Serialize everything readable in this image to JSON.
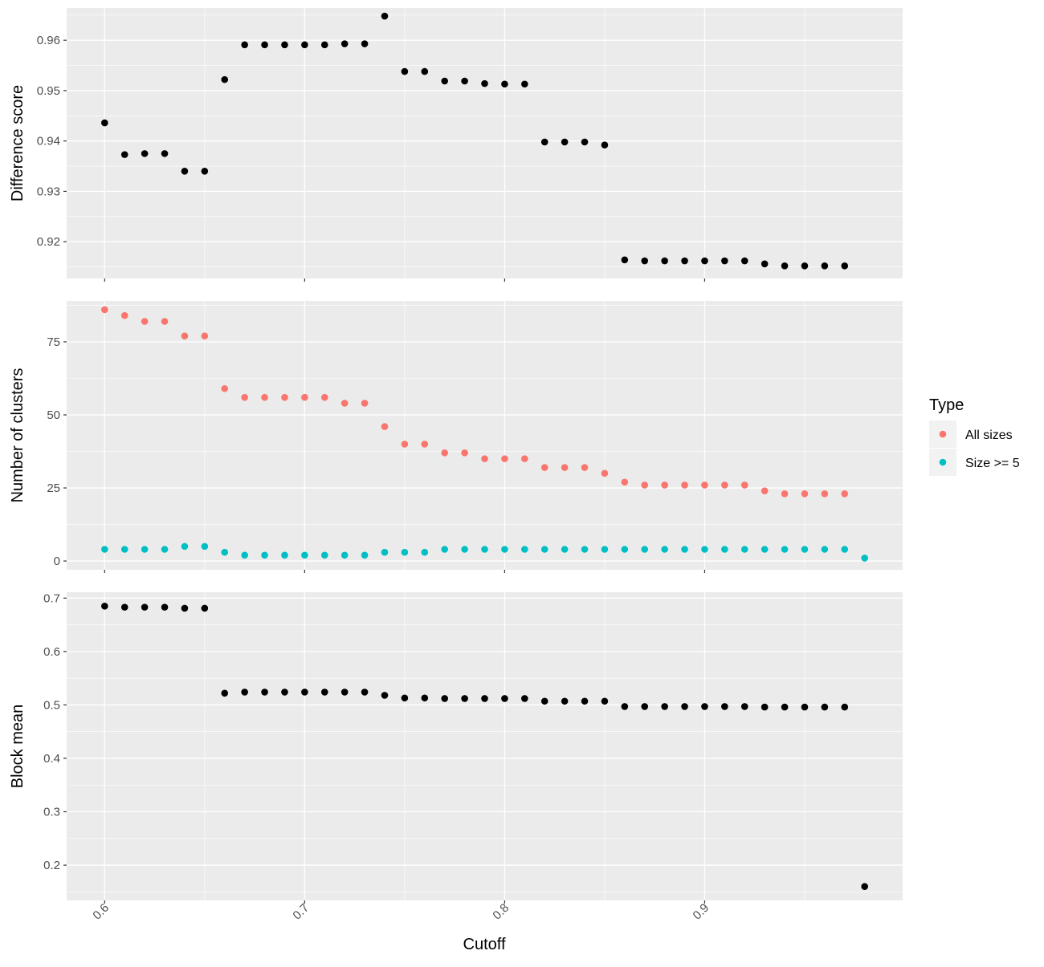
{
  "chart_data": {
    "type": "scatter",
    "xlabel": "Cutoff",
    "xlim": [
      0.581,
      0.999
    ],
    "xticks": [
      "0.6",
      "0.7",
      "0.8",
      "0.9"
    ],
    "xtick_values": [
      0.6,
      0.7,
      0.8,
      0.9
    ],
    "grid": true,
    "legend": {
      "title": "Type",
      "placement": "right",
      "entries": [
        {
          "label": "All sizes",
          "color": "#F8766D"
        },
        {
          "label": "Size >= 5",
          "color": "#00BFC4"
        }
      ]
    },
    "panels": [
      {
        "ylabel": "Difference score",
        "ylim": [
          0.9127,
          0.9664
        ],
        "yticks": [
          "0.92",
          "0.93",
          "0.94",
          "0.95",
          "0.96"
        ],
        "ytick_values": [
          0.92,
          0.93,
          0.94,
          0.95,
          0.96
        ],
        "series": [
          {
            "color": "#000000",
            "points": [
              [
                0.6,
                0.9436
              ],
              [
                0.61,
                0.9373
              ],
              [
                0.62,
                0.9375
              ],
              [
                0.63,
                0.9375
              ],
              [
                0.64,
                0.934
              ],
              [
                0.65,
                0.934
              ],
              [
                0.66,
                0.9522
              ],
              [
                0.67,
                0.9591
              ],
              [
                0.68,
                0.9591
              ],
              [
                0.69,
                0.9591
              ],
              [
                0.7,
                0.9591
              ],
              [
                0.71,
                0.9591
              ],
              [
                0.72,
                0.9593
              ],
              [
                0.73,
                0.9593
              ],
              [
                0.74,
                0.9648
              ],
              [
                0.75,
                0.9538
              ],
              [
                0.76,
                0.9538
              ],
              [
                0.77,
                0.9519
              ],
              [
                0.78,
                0.9519
              ],
              [
                0.79,
                0.9514
              ],
              [
                0.8,
                0.9513
              ],
              [
                0.81,
                0.9513
              ],
              [
                0.82,
                0.9398
              ],
              [
                0.83,
                0.9398
              ],
              [
                0.84,
                0.9398
              ],
              [
                0.85,
                0.9392
              ],
              [
                0.86,
                0.9164
              ],
              [
                0.87,
                0.9162
              ],
              [
                0.88,
                0.9162
              ],
              [
                0.89,
                0.9162
              ],
              [
                0.9,
                0.9162
              ],
              [
                0.91,
                0.9162
              ],
              [
                0.92,
                0.9162
              ],
              [
                0.93,
                0.9156
              ],
              [
                0.94,
                0.9152
              ],
              [
                0.95,
                0.9152
              ],
              [
                0.96,
                0.9152
              ],
              [
                0.97,
                0.9152
              ]
            ]
          }
        ]
      },
      {
        "ylabel": "Number of clusters",
        "ylim": [
          -3,
          89
        ],
        "yticks": [
          "0",
          "25",
          "50",
          "75"
        ],
        "ytick_values": [
          0,
          25,
          50,
          75
        ],
        "series": [
          {
            "name": "All sizes",
            "color": "#F8766D",
            "points": [
              [
                0.6,
                86
              ],
              [
                0.61,
                84
              ],
              [
                0.62,
                82
              ],
              [
                0.63,
                82
              ],
              [
                0.64,
                77
              ],
              [
                0.65,
                77
              ],
              [
                0.66,
                59
              ],
              [
                0.67,
                56
              ],
              [
                0.68,
                56
              ],
              [
                0.69,
                56
              ],
              [
                0.7,
                56
              ],
              [
                0.71,
                56
              ],
              [
                0.72,
                54
              ],
              [
                0.73,
                54
              ],
              [
                0.74,
                46
              ],
              [
                0.75,
                40
              ],
              [
                0.76,
                40
              ],
              [
                0.77,
                37
              ],
              [
                0.78,
                37
              ],
              [
                0.79,
                35
              ],
              [
                0.8,
                35
              ],
              [
                0.81,
                35
              ],
              [
                0.82,
                32
              ],
              [
                0.83,
                32
              ],
              [
                0.84,
                32
              ],
              [
                0.85,
                30
              ],
              [
                0.86,
                27
              ],
              [
                0.87,
                26
              ],
              [
                0.88,
                26
              ],
              [
                0.89,
                26
              ],
              [
                0.9,
                26
              ],
              [
                0.91,
                26
              ],
              [
                0.92,
                26
              ],
              [
                0.93,
                24
              ],
              [
                0.94,
                23
              ],
              [
                0.95,
                23
              ],
              [
                0.96,
                23
              ],
              [
                0.97,
                23
              ]
            ]
          },
          {
            "name": "Size >= 5",
            "color": "#00BFC4",
            "points": [
              [
                0.6,
                4
              ],
              [
                0.61,
                4
              ],
              [
                0.62,
                4
              ],
              [
                0.63,
                4
              ],
              [
                0.64,
                5
              ],
              [
                0.65,
                5
              ],
              [
                0.66,
                3
              ],
              [
                0.67,
                2
              ],
              [
                0.68,
                2
              ],
              [
                0.69,
                2
              ],
              [
                0.7,
                2
              ],
              [
                0.71,
                2
              ],
              [
                0.72,
                2
              ],
              [
                0.73,
                2
              ],
              [
                0.74,
                3
              ],
              [
                0.75,
                3
              ],
              [
                0.76,
                3
              ],
              [
                0.77,
                4
              ],
              [
                0.78,
                4
              ],
              [
                0.79,
                4
              ],
              [
                0.8,
                4
              ],
              [
                0.81,
                4
              ],
              [
                0.82,
                4
              ],
              [
                0.83,
                4
              ],
              [
                0.84,
                4
              ],
              [
                0.85,
                4
              ],
              [
                0.86,
                4
              ],
              [
                0.87,
                4
              ],
              [
                0.88,
                4
              ],
              [
                0.89,
                4
              ],
              [
                0.9,
                4
              ],
              [
                0.91,
                4
              ],
              [
                0.92,
                4
              ],
              [
                0.93,
                4
              ],
              [
                0.94,
                4
              ],
              [
                0.95,
                4
              ],
              [
                0.96,
                4
              ],
              [
                0.97,
                4
              ],
              [
                0.98,
                1
              ]
            ]
          }
        ]
      },
      {
        "ylabel": "Block mean",
        "ylim": [
          0.134,
          0.711
        ],
        "yticks": [
          "0.2",
          "0.3",
          "0.4",
          "0.5",
          "0.6",
          "0.7"
        ],
        "ytick_values": [
          0.2,
          0.3,
          0.4,
          0.5,
          0.6,
          0.7
        ],
        "series": [
          {
            "color": "#000000",
            "points": [
              [
                0.6,
                0.685
              ],
              [
                0.61,
                0.683
              ],
              [
                0.62,
                0.683
              ],
              [
                0.63,
                0.683
              ],
              [
                0.64,
                0.681
              ],
              [
                0.65,
                0.681
              ],
              [
                0.66,
                0.522
              ],
              [
                0.67,
                0.524
              ],
              [
                0.68,
                0.524
              ],
              [
                0.69,
                0.524
              ],
              [
                0.7,
                0.524
              ],
              [
                0.71,
                0.524
              ],
              [
                0.72,
                0.524
              ],
              [
                0.73,
                0.524
              ],
              [
                0.74,
                0.518
              ],
              [
                0.75,
                0.513
              ],
              [
                0.76,
                0.513
              ],
              [
                0.77,
                0.512
              ],
              [
                0.78,
                0.512
              ],
              [
                0.79,
                0.512
              ],
              [
                0.8,
                0.512
              ],
              [
                0.81,
                0.512
              ],
              [
                0.82,
                0.507
              ],
              [
                0.83,
                0.507
              ],
              [
                0.84,
                0.507
              ],
              [
                0.85,
                0.507
              ],
              [
                0.86,
                0.497
              ],
              [
                0.87,
                0.497
              ],
              [
                0.88,
                0.497
              ],
              [
                0.89,
                0.497
              ],
              [
                0.9,
                0.497
              ],
              [
                0.91,
                0.497
              ],
              [
                0.92,
                0.497
              ],
              [
                0.93,
                0.496
              ],
              [
                0.94,
                0.496
              ],
              [
                0.95,
                0.496
              ],
              [
                0.96,
                0.496
              ],
              [
                0.97,
                0.496
              ],
              [
                0.98,
                0.16
              ]
            ]
          }
        ]
      }
    ]
  }
}
